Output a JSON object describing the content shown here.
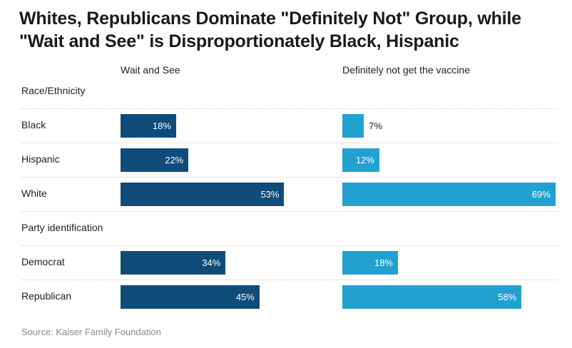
{
  "title_lines": [
    "Whites, Republicans Dominate \"Definitely Not\" Group, while",
    "\"Wait and See\" is Disproportionately Black, Hispanic"
  ],
  "source": "Source: Kaiser Family Foundation",
  "colors": {
    "wait": "#0f4c7a",
    "not": "#22a1d1"
  },
  "chart_data": {
    "type": "bar",
    "orientation": "horizontal",
    "series": [
      {
        "name": "Wait and See",
        "color": "#0f4c7a"
      },
      {
        "name": "Definitely not get the vaccine",
        "color": "#22a1d1"
      }
    ],
    "groups": [
      {
        "label": "Race/Ethnicity",
        "rows": [
          {
            "category": "Black",
            "values": [
              18,
              7
            ],
            "labels": [
              "18%",
              "7%"
            ]
          },
          {
            "category": "Hispanic",
            "values": [
              22,
              12
            ],
            "labels": [
              "22%",
              "12%"
            ]
          },
          {
            "category": "White",
            "values": [
              53,
              69
            ],
            "labels": [
              "53%",
              "69%"
            ]
          }
        ]
      },
      {
        "label": "Party identification",
        "rows": [
          {
            "category": "Democrat",
            "values": [
              34,
              18
            ],
            "labels": [
              "34%",
              "18%"
            ]
          },
          {
            "category": "Republican",
            "values": [
              45,
              58
            ],
            "labels": [
              "45%",
              "58%"
            ]
          }
        ]
      }
    ],
    "xlim": [
      0,
      100
    ],
    "grid": false,
    "legend": "column headers"
  }
}
